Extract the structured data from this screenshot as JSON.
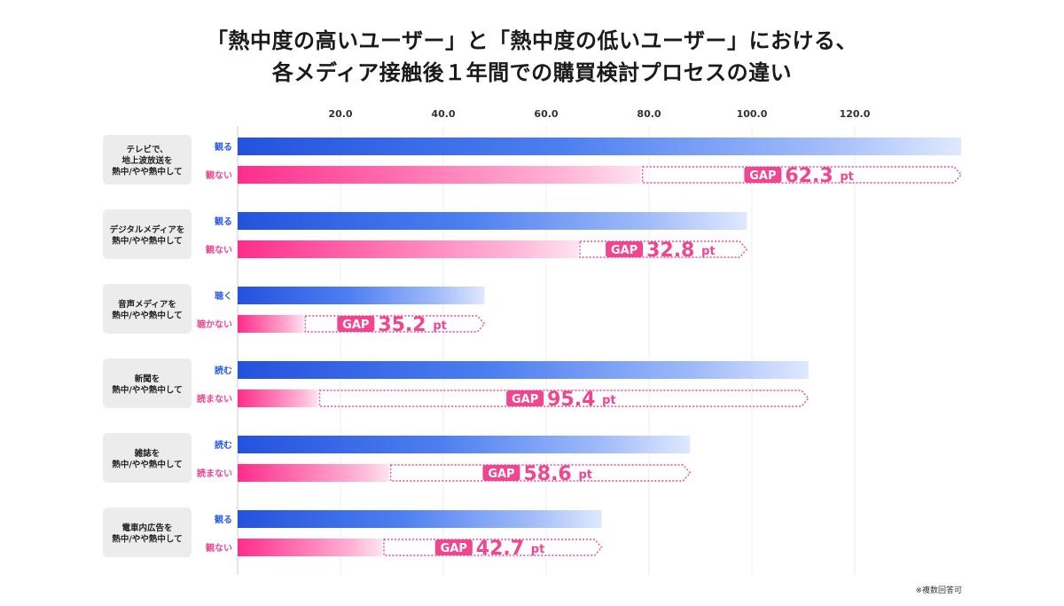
{
  "title_line1": "「熱中度の高いユーザー」と「熱中度の低いユーザー」における、",
  "title_line2": "各メディア接触後１年間での購買検討プロセスの違い",
  "note": "※複数回答可",
  "colors": {
    "blue_dark": "#2f5fe6",
    "blue_light": "#dbe6ff",
    "pink_dark": "#ff2f8e",
    "pink_light": "#ffe1ef",
    "gap_pink": "#f0458f",
    "group_bg": "#ececec"
  },
  "chart_data": {
    "type": "bar",
    "orientation": "horizontal",
    "xlim": [
      0,
      140
    ],
    "x_ticks": [
      "20.0",
      "40.0",
      "60.0",
      "80.0",
      "100.0",
      "120.0"
    ],
    "grid": true,
    "gap_prefix": "GAP",
    "gap_unit": "pt",
    "groups": [
      {
        "label": [
          "テレビで、",
          "地上波放送を",
          "熱中/やや熱中して"
        ],
        "high_label": "観る",
        "low_label": "観ない",
        "high": 140.7,
        "low": 78.4,
        "gap": "62.3"
      },
      {
        "label": [
          "デジタルメディアを",
          "熱中/やや熱中して"
        ],
        "high_label": "観る",
        "low_label": "観ない",
        "high": 99.0,
        "low": 66.2,
        "gap": "32.8"
      },
      {
        "label": [
          "音声メディアを",
          "熱中/やや熱中して"
        ],
        "high_label": "聴く",
        "low_label": "聴かない",
        "high": 48.0,
        "low": 12.8,
        "gap": "35.2"
      },
      {
        "label": [
          "新聞を",
          "熱中/やや熱中して"
        ],
        "high_label": "読む",
        "low_label": "読まない",
        "high": 111.0,
        "low": 15.6,
        "gap": "95.4"
      },
      {
        "label": [
          "雑誌を",
          "熱中/やや熱中して"
        ],
        "high_label": "読む",
        "low_label": "読まない",
        "high": 88.0,
        "low": 29.4,
        "gap": "58.6"
      },
      {
        "label": [
          "電車内広告を",
          "熱中/やや熱中して"
        ],
        "high_label": "観る",
        "low_label": "観ない",
        "high": 70.8,
        "low": 28.1,
        "gap": "42.7"
      }
    ]
  }
}
